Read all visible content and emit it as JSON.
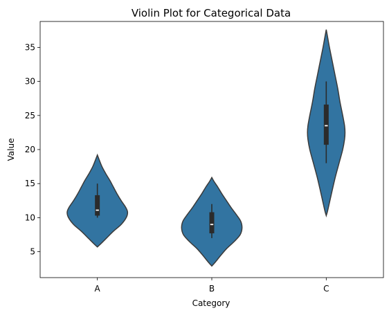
{
  "chart_data": {
    "type": "violin",
    "title": "Violin Plot for Categorical Data",
    "xlabel": "Category",
    "ylabel": "Value",
    "categories": [
      "A",
      "B",
      "C"
    ],
    "ylim": [
      1.2,
      38.8
    ],
    "yticks": [
      5,
      10,
      15,
      20,
      25,
      30,
      35
    ],
    "grid": false,
    "fill_color": "#3274a1",
    "edge_color": "#3a3a3a",
    "box_color": "#2b2b2b",
    "median_color": "#ffffff",
    "violins": [
      {
        "category": "A",
        "min": 10.0,
        "q1": 10.3,
        "median": 11.1,
        "q3": 13.3,
        "max": 15.0,
        "density": [
          [
            5.7,
            0.0
          ],
          [
            6.2,
            0.08
          ],
          [
            7.0,
            0.2
          ],
          [
            8.0,
            0.35
          ],
          [
            9.0,
            0.52
          ],
          [
            10.0,
            0.63
          ],
          [
            10.8,
            0.66
          ],
          [
            11.5,
            0.62
          ],
          [
            12.5,
            0.52
          ],
          [
            13.5,
            0.43
          ],
          [
            14.5,
            0.35
          ],
          [
            15.5,
            0.27
          ],
          [
            16.5,
            0.18
          ],
          [
            17.5,
            0.1
          ],
          [
            18.5,
            0.04
          ],
          [
            19.2,
            0.0
          ]
        ]
      },
      {
        "category": "B",
        "min": 7.0,
        "q1": 7.7,
        "median": 9.0,
        "q3": 10.8,
        "max": 12.0,
        "density": [
          [
            2.9,
            0.0
          ],
          [
            3.5,
            0.08
          ],
          [
            4.5,
            0.2
          ],
          [
            5.5,
            0.33
          ],
          [
            6.5,
            0.49
          ],
          [
            7.5,
            0.62
          ],
          [
            8.5,
            0.66
          ],
          [
            9.5,
            0.63
          ],
          [
            10.5,
            0.53
          ],
          [
            11.5,
            0.42
          ],
          [
            12.5,
            0.32
          ],
          [
            13.5,
            0.22
          ],
          [
            14.5,
            0.13
          ],
          [
            15.3,
            0.05
          ],
          [
            15.9,
            0.0
          ]
        ]
      },
      {
        "category": "C",
        "min": 18.0,
        "q1": 20.7,
        "median": 23.5,
        "q3": 26.6,
        "max": 30.0,
        "density": [
          [
            10.3,
            0.0
          ],
          [
            11.0,
            0.03
          ],
          [
            12.5,
            0.08
          ],
          [
            14.0,
            0.13
          ],
          [
            16.0,
            0.2
          ],
          [
            18.0,
            0.28
          ],
          [
            20.0,
            0.36
          ],
          [
            21.5,
            0.4
          ],
          [
            22.5,
            0.41
          ],
          [
            23.5,
            0.4
          ],
          [
            25.0,
            0.36
          ],
          [
            27.0,
            0.3
          ],
          [
            29.0,
            0.25
          ],
          [
            31.0,
            0.19
          ],
          [
            33.0,
            0.13
          ],
          [
            35.0,
            0.07
          ],
          [
            36.5,
            0.03
          ],
          [
            37.6,
            0.0
          ]
        ]
      }
    ]
  }
}
